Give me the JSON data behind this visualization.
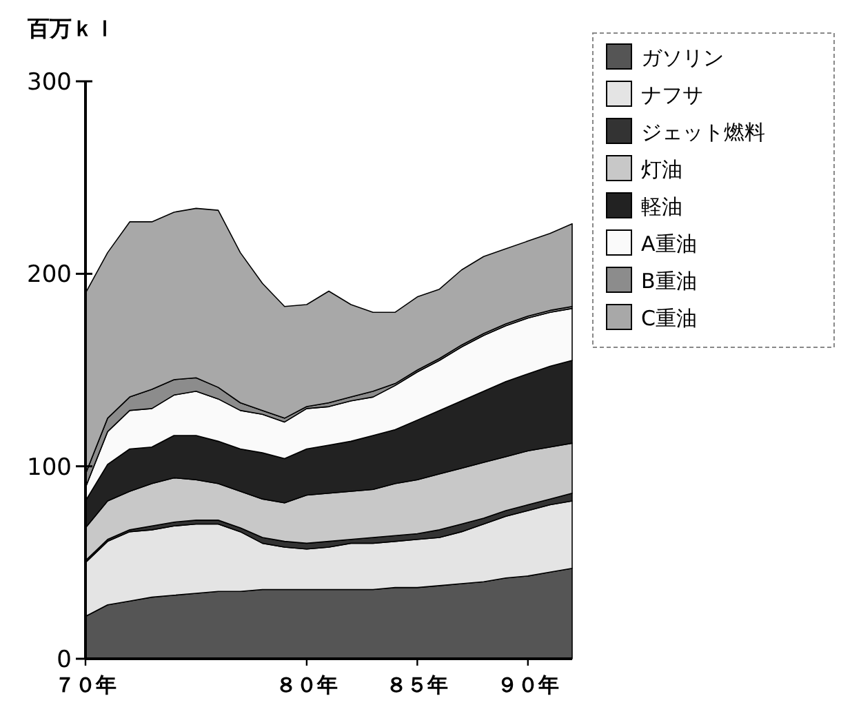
{
  "chart_data": {
    "type": "area",
    "stacked": true,
    "ylabel": "百万ｋｌ",
    "x": [
      70,
      71,
      72,
      73,
      74,
      75,
      76,
      77,
      78,
      79,
      80,
      81,
      82,
      83,
      84,
      85,
      86,
      87,
      88,
      89,
      90,
      91,
      92
    ],
    "xlim": [
      70,
      92
    ],
    "xticks": [
      {
        "value": 70,
        "label": "７０年"
      },
      {
        "value": 80,
        "label": "８０年"
      },
      {
        "value": 85,
        "label": "８５年"
      },
      {
        "value": 90,
        "label": "９０年"
      }
    ],
    "ylim": [
      0,
      300
    ],
    "yticks": [
      0,
      100,
      200,
      300
    ],
    "grid": false,
    "legend": "right",
    "series": [
      {
        "name": "ガソリン",
        "color": "#555555",
        "values": [
          22,
          28,
          30,
          32,
          33,
          34,
          35,
          35,
          36,
          36,
          36,
          36,
          36,
          36,
          37,
          37,
          38,
          39,
          40,
          42,
          43,
          45,
          47
        ]
      },
      {
        "name": "ナフサ",
        "color": "#e4e4e4",
        "values": [
          28,
          33,
          36,
          35,
          36,
          36,
          35,
          31,
          24,
          22,
          21,
          22,
          24,
          24,
          24,
          25,
          25,
          27,
          30,
          32,
          34,
          35,
          35
        ]
      },
      {
        "name": "ジェット燃料",
        "color": "#333333",
        "values": [
          1,
          1,
          1,
          2,
          2,
          2,
          2,
          2,
          3,
          3,
          3,
          3,
          2,
          3,
          3,
          3,
          4,
          4,
          3,
          3,
          3,
          3,
          4
        ]
      },
      {
        "name": "灯油",
        "color": "#c8c8c8",
        "values": [
          17,
          20,
          20,
          22,
          23,
          21,
          19,
          19,
          20,
          20,
          25,
          25,
          25,
          25,
          27,
          28,
          29,
          29,
          29,
          28,
          28,
          27,
          26
        ]
      },
      {
        "name": "軽油",
        "color": "#222222",
        "values": [
          14,
          19,
          22,
          19,
          22,
          23,
          22,
          22,
          24,
          23,
          24,
          25,
          26,
          28,
          28,
          31,
          33,
          35,
          37,
          39,
          40,
          42,
          43
        ]
      },
      {
        "name": "A重油",
        "color": "#fafafa",
        "values": [
          7,
          17,
          20,
          20,
          21,
          23,
          22,
          20,
          20,
          19,
          21,
          20,
          21,
          20,
          23,
          25,
          26,
          28,
          29,
          29,
          29,
          28,
          27
        ]
      },
      {
        "name": "B重油",
        "color": "#8c8c8c",
        "values": [
          7,
          7,
          7,
          10,
          8,
          7,
          6,
          4,
          2,
          2,
          1,
          2,
          2,
          3,
          1,
          1,
          1,
          1,
          1,
          1,
          1,
          1,
          1
        ]
      },
      {
        "name": "C重油",
        "color": "#a8a8a8",
        "values": [
          94,
          86,
          91,
          87,
          87,
          88,
          92,
          78,
          66,
          58,
          53,
          58,
          48,
          41,
          37,
          38,
          36,
          39,
          40,
          39,
          39,
          40,
          43
        ]
      }
    ]
  }
}
